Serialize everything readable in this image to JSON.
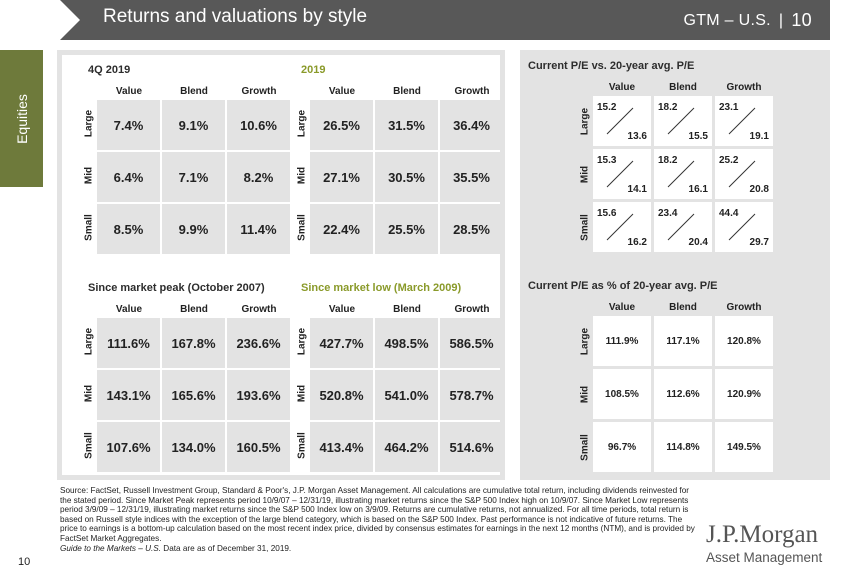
{
  "header": {
    "title": "Returns and valuations by style",
    "section": "GTM – U.S.",
    "page": "10"
  },
  "side_tab": "Equities",
  "columns": [
    "Value",
    "Blend",
    "Growth"
  ],
  "rows": [
    "Large",
    "Mid",
    "Small"
  ],
  "blocks": [
    {
      "title": "4Q 2019",
      "values": [
        [
          "7.4%",
          "9.1%",
          "10.6%"
        ],
        [
          "6.4%",
          "7.1%",
          "8.2%"
        ],
        [
          "8.5%",
          "9.9%",
          "11.4%"
        ]
      ]
    },
    {
      "title": "2019",
      "values": [
        [
          "26.5%",
          "31.5%",
          "36.4%"
        ],
        [
          "27.1%",
          "30.5%",
          "35.5%"
        ],
        [
          "22.4%",
          "25.5%",
          "28.5%"
        ]
      ]
    },
    {
      "title": "Since market peak (October 2007)",
      "values": [
        [
          "111.6%",
          "167.8%",
          "236.6%"
        ],
        [
          "143.1%",
          "165.6%",
          "193.6%"
        ],
        [
          "107.6%",
          "134.0%",
          "160.5%"
        ]
      ]
    },
    {
      "title": "Since market low (March 2009)",
      "values": [
        [
          "427.7%",
          "498.5%",
          "586.5%"
        ],
        [
          "520.8%",
          "541.0%",
          "578.7%"
        ],
        [
          "413.4%",
          "464.2%",
          "514.6%"
        ]
      ]
    }
  ],
  "pe_block": {
    "title": "Current P/E vs. 20-year avg. P/E",
    "current": [
      [
        "15.2",
        "18.2",
        "23.1"
      ],
      [
        "15.3",
        "18.2",
        "25.2"
      ],
      [
        "15.6",
        "23.4",
        "44.4"
      ]
    ],
    "average": [
      [
        "13.6",
        "15.5",
        "19.1"
      ],
      [
        "14.1",
        "16.1",
        "20.8"
      ],
      [
        "16.2",
        "20.4",
        "29.7"
      ]
    ]
  },
  "pct_block": {
    "title": "Current P/E as % of 20-year avg. P/E",
    "values": [
      [
        "111.9%",
        "117.1%",
        "120.8%"
      ],
      [
        "108.5%",
        "112.6%",
        "120.9%"
      ],
      [
        "96.7%",
        "114.8%",
        "149.5%"
      ]
    ]
  },
  "footnote": {
    "body": "Source: FactSet, Russell Investment Group, Standard & Poor's, J.P. Morgan Asset Management. All calculations are cumulative total return, including dividends reinvested for the stated period. Since Market Peak represents period 10/9/07 – 12/31/19, illustrating market returns since the S&P 500 Index high on 10/9/07. Since Market Low represents period 3/9/09 – 12/31/19, illustrating market returns since the S&P 500 Index low on 3/9/09. Returns are cumulative returns, not annualized. For all time periods, total return is based on Russell style indices with the exception of the large blend category, which is based on the S&P 500 Index. Past performance is not indicative of future returns. The price to earnings is a bottom-up calculation based on the most recent index price, divided by consensus estimates for earnings in the next 12 months (NTM), and is provided by FactSet Market Aggregates.",
    "guide": "Guide to the Markets – U.S.",
    "asof": " Data are as of December 31, 2019."
  },
  "page_number": "10",
  "logo": {
    "line1": "J.P.Morgan",
    "line2": "Asset Management"
  }
}
